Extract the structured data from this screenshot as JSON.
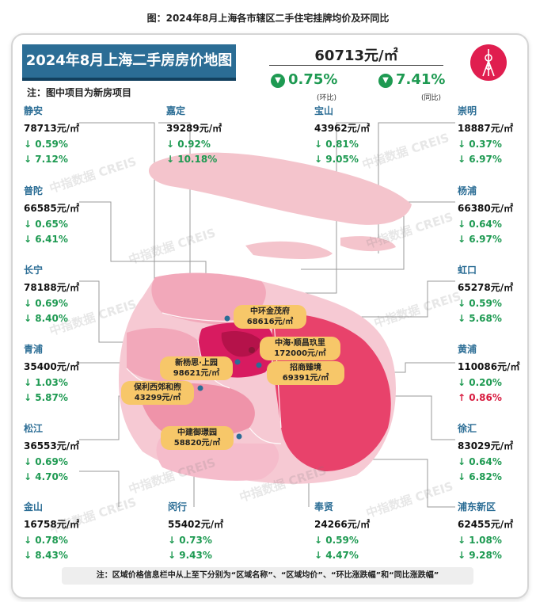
{
  "figure_title": "图：2024年8月上海各市辖区二手住宅挂牌均价及环同比",
  "banner_title": "2024年8月上海二手房房价地图",
  "note_top": "注：图中项目为新房项目",
  "citywide": {
    "price": "60713元/㎡",
    "mom_value": "0.75%",
    "mom_label": "(环比)",
    "yoy_value": "7.41%",
    "yoy_label": "(同比)"
  },
  "watermark_text": "中指数据 CREIS",
  "districts": [
    {
      "name": "静安",
      "price": "78713元/㎡",
      "mom": "↓ 0.59%",
      "yoy": "↓ 7.12%"
    },
    {
      "name": "嘉定",
      "price": "39289元/㎡",
      "mom": "↓ 0.92%",
      "yoy": "↓ 10.18%"
    },
    {
      "name": "宝山",
      "price": "43962元/㎡",
      "mom": "↓ 0.81%",
      "yoy": "↓ 9.05%"
    },
    {
      "name": "崇明",
      "price": "18887元/㎡",
      "mom": "↓ 0.37%",
      "yoy": "↓ 6.97%"
    },
    {
      "name": "普陀",
      "price": "66585元/㎡",
      "mom": "↓ 0.65%",
      "yoy": "↓ 6.41%"
    },
    {
      "name": "杨浦",
      "price": "66380元/㎡",
      "mom": "↓ 0.64%",
      "yoy": "↓ 6.97%"
    },
    {
      "name": "长宁",
      "price": "78188元/㎡",
      "mom": "↓ 0.69%",
      "yoy": "↓ 8.40%"
    },
    {
      "name": "虹口",
      "price": "65278元/㎡",
      "mom": "↓ 0.59%",
      "yoy": "↓ 5.68%"
    },
    {
      "name": "青浦",
      "price": "35400元/㎡",
      "mom": "↓ 1.03%",
      "yoy": "↓ 5.87%"
    },
    {
      "name": "黄浦",
      "price": "110086元/㎡",
      "mom": "↓ 0.20%",
      "yoy": "↑ 0.86%"
    },
    {
      "name": "松江",
      "price": "36553元/㎡",
      "mom": "↓ 0.69%",
      "yoy": "↓ 4.70%"
    },
    {
      "name": "徐汇",
      "price": "83029元/㎡",
      "mom": "↓ 0.64%",
      "yoy": "↓ 6.82%"
    },
    {
      "name": "金山",
      "price": "16758元/㎡",
      "mom": "↓ 0.78%",
      "yoy": "↓ 8.43%"
    },
    {
      "name": "闵行",
      "price": "55402元/㎡",
      "mom": "↓ 0.73%",
      "yoy": "↓ 9.43%"
    },
    {
      "name": "奉贤",
      "price": "24266元/㎡",
      "mom": "↓ 0.59%",
      "yoy": "↓ 4.47%"
    },
    {
      "name": "浦东新区",
      "price": "62455元/㎡",
      "mom": "↓ 1.08%",
      "yoy": "↓ 9.28%"
    }
  ],
  "projects": [
    {
      "name": "中环金茂府",
      "price": "68616元/㎡"
    },
    {
      "name": "中海·顺昌玖里",
      "price": "172000元/㎡"
    },
    {
      "name": "新杨思·上园",
      "price": "98621元/㎡"
    },
    {
      "name": "招商臻境",
      "price": "69391元/㎡"
    },
    {
      "name": "保利西郊和煦",
      "price": "43299元/㎡"
    },
    {
      "name": "中建御璟园",
      "price": "58820元/㎡"
    }
  ],
  "bottom_note": "注：区域价格信息栏中从上至下分别为“区域名称”、“区域均价”、“环比涨跌幅”和“同比涨跌幅”",
  "chart_data": {
    "type": "table",
    "columns": [
      "区域名称",
      "区域均价",
      "环比涨跌幅",
      "同比涨跌幅"
    ],
    "unit": "元/㎡",
    "citywide": {
      "price": 60713,
      "mom_pct": -0.75,
      "yoy_pct": -7.41
    },
    "rows": [
      {
        "district": "静安",
        "price": 78713,
        "mom_pct": -0.59,
        "yoy_pct": -7.12
      },
      {
        "district": "嘉定",
        "price": 39289,
        "mom_pct": -0.92,
        "yoy_pct": -10.18
      },
      {
        "district": "宝山",
        "price": 43962,
        "mom_pct": -0.81,
        "yoy_pct": -9.05
      },
      {
        "district": "崇明",
        "price": 18887,
        "mom_pct": -0.37,
        "yoy_pct": -6.97
      },
      {
        "district": "普陀",
        "price": 66585,
        "mom_pct": -0.65,
        "yoy_pct": -6.41
      },
      {
        "district": "杨浦",
        "price": 66380,
        "mom_pct": -0.64,
        "yoy_pct": -6.97
      },
      {
        "district": "长宁",
        "price": 78188,
        "mom_pct": -0.69,
        "yoy_pct": -8.4
      },
      {
        "district": "虹口",
        "price": 65278,
        "mom_pct": -0.59,
        "yoy_pct": -5.68
      },
      {
        "district": "青浦",
        "price": 35400,
        "mom_pct": -1.03,
        "yoy_pct": -5.87
      },
      {
        "district": "黄浦",
        "price": 110086,
        "mom_pct": -0.2,
        "yoy_pct": 0.86
      },
      {
        "district": "松江",
        "price": 36553,
        "mom_pct": -0.69,
        "yoy_pct": -4.7
      },
      {
        "district": "徐汇",
        "price": 83029,
        "mom_pct": -0.64,
        "yoy_pct": -6.82
      },
      {
        "district": "金山",
        "price": 16758,
        "mom_pct": -0.78,
        "yoy_pct": -8.43
      },
      {
        "district": "闵行",
        "price": 55402,
        "mom_pct": -0.73,
        "yoy_pct": -9.43
      },
      {
        "district": "奉贤",
        "price": 24266,
        "mom_pct": -0.59,
        "yoy_pct": -4.47
      },
      {
        "district": "浦东新区",
        "price": 62455,
        "mom_pct": -1.08,
        "yoy_pct": -9.28
      }
    ],
    "new_projects": [
      {
        "name": "中环金茂府",
        "price": 68616
      },
      {
        "name": "中海·顺昌玖里",
        "price": 172000
      },
      {
        "name": "新杨思·上园",
        "price": 98621
      },
      {
        "name": "招商臻境",
        "price": 69391
      },
      {
        "name": "保利西郊和煦",
        "price": 43299
      },
      {
        "name": "中建御璟园",
        "price": 58820
      }
    ],
    "colors": {
      "accent": "#2b6d95",
      "down": "#1e9a52",
      "up": "#d81b3f",
      "project": "#f7c769"
    }
  }
}
